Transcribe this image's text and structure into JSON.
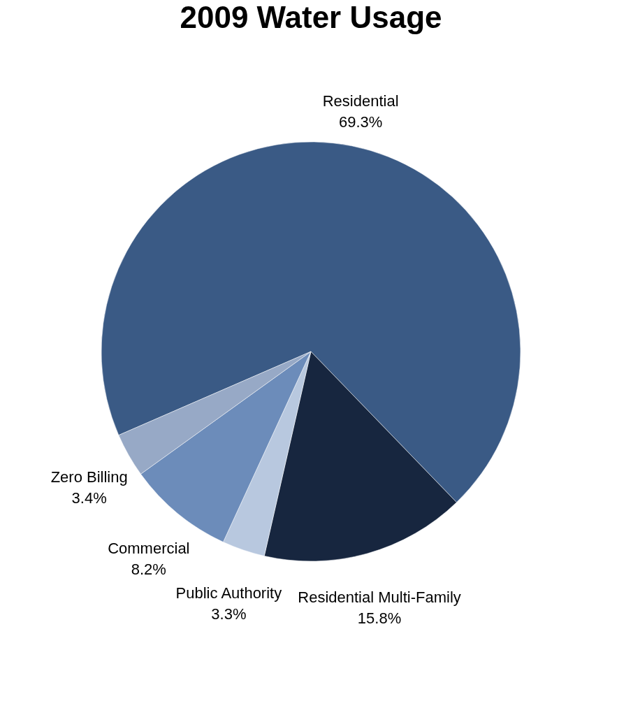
{
  "chart_data": {
    "type": "pie",
    "title": "2009 Water Usage",
    "categories": [
      "Residential",
      "Residential Multi-Family",
      "Public Authority",
      "Commercial",
      "Zero Billing"
    ],
    "values": [
      69.3,
      15.8,
      3.3,
      8.2,
      3.4
    ],
    "value_labels": [
      "69.3%",
      "15.8%",
      "3.3%",
      "8.2%",
      "3.4%"
    ],
    "colors": [
      "#3a5a85",
      "#17263f",
      "#b8c8df",
      "#6c8cba",
      "#97a9c6"
    ],
    "legend": false
  }
}
